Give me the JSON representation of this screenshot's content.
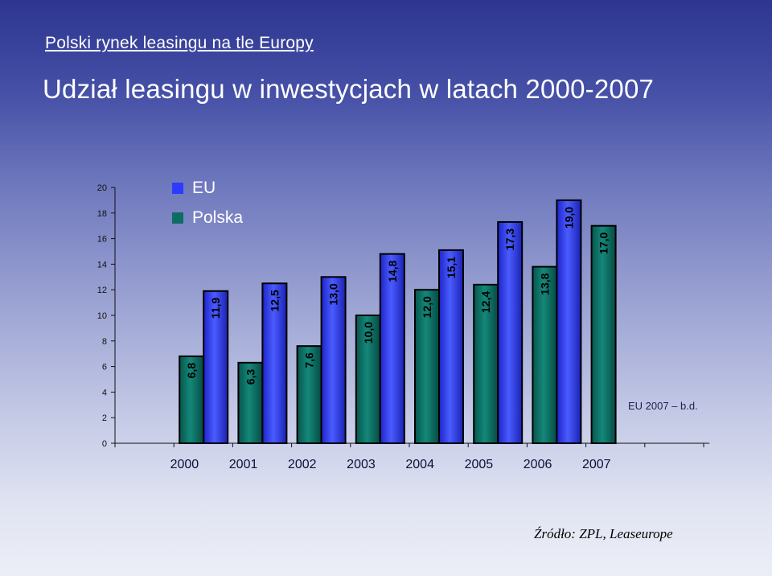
{
  "slide": {
    "subtitle": "Polski rynek leasingu na tle Europy",
    "title": "Udział leasingu w inwestycjach w latach 2000-2007",
    "note": "EU 2007 – b.d.",
    "source": "Źródło: ZPL, Leaseurope"
  },
  "chart_data": {
    "type": "bar",
    "categories": [
      "2000",
      "2001",
      "2002",
      "2003",
      "2004",
      "2005",
      "2006",
      "2007"
    ],
    "series": [
      {
        "name": "EU",
        "color": "#2b3cff",
        "values": [
          11.9,
          12.5,
          13.0,
          14.8,
          15.1,
          17.3,
          19.0,
          null
        ],
        "labels": [
          "11,9",
          "12,5",
          "13,0",
          "14,8",
          "15,1",
          "17,3",
          "19,0",
          ""
        ]
      },
      {
        "name": "Polska",
        "color": "#0e6d62",
        "values": [
          6.8,
          6.3,
          7.6,
          10.0,
          12.0,
          12.4,
          13.8,
          17.0
        ],
        "labels": [
          "6,8",
          "6,3",
          "7,6",
          "10,0",
          "12,0",
          "12,4",
          "13,8",
          "17,0"
        ]
      }
    ],
    "yticks": [
      "0",
      "2",
      "4",
      "6",
      "8",
      "10",
      "12",
      "14",
      "16",
      "18",
      "20"
    ],
    "ylim": [
      0,
      20
    ],
    "legend_position": "top-left",
    "grid": false,
    "colors": {
      "eu": "#2b3cff",
      "polska": "#0e6d62"
    }
  }
}
